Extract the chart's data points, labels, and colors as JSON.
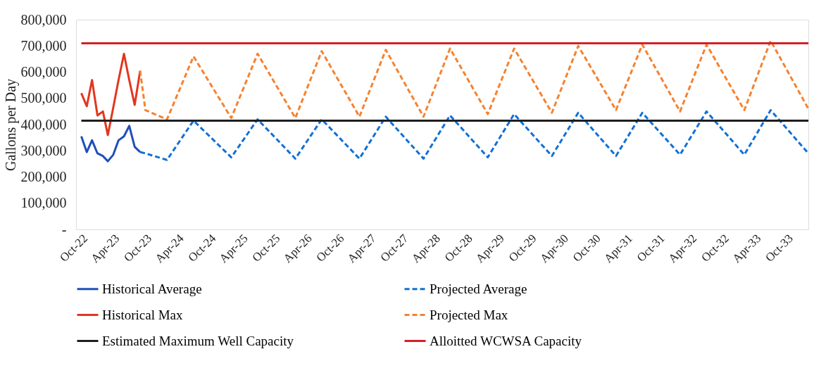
{
  "chart_data": {
    "type": "line",
    "ylabel": "Gallons per Day",
    "marker": "none",
    "grid": false,
    "legend": "bottom",
    "xlim": [
      "2022-09",
      "2034-02"
    ],
    "xticks": [
      {
        "value": "2022-10",
        "label": "Oct-22"
      },
      {
        "value": "2023-04",
        "label": "Apr-23"
      },
      {
        "value": "2023-10",
        "label": "Oct-23"
      },
      {
        "value": "2024-04",
        "label": "Apr-24"
      },
      {
        "value": "2024-10",
        "label": "Oct-24"
      },
      {
        "value": "2025-04",
        "label": "Apr-25"
      },
      {
        "value": "2025-10",
        "label": "Oct-25"
      },
      {
        "value": "2026-04",
        "label": "Apr-26"
      },
      {
        "value": "2026-10",
        "label": "Oct-26"
      },
      {
        "value": "2027-04",
        "label": "Apr-27"
      },
      {
        "value": "2027-10",
        "label": "Oct-27"
      },
      {
        "value": "2028-04",
        "label": "Apr-28"
      },
      {
        "value": "2028-10",
        "label": "Oct-28"
      },
      {
        "value": "2029-04",
        "label": "Apr-29"
      },
      {
        "value": "2029-10",
        "label": "Oct-29"
      },
      {
        "value": "2030-04",
        "label": "Apr-30"
      },
      {
        "value": "2030-10",
        "label": "Oct-30"
      },
      {
        "value": "2031-04",
        "label": "Apr-31"
      },
      {
        "value": "2031-10",
        "label": "Oct-31"
      },
      {
        "value": "2032-04",
        "label": "Apr-32"
      },
      {
        "value": "2032-10",
        "label": "Oct-32"
      },
      {
        "value": "2033-04",
        "label": "Apr-33"
      },
      {
        "value": "2033-10",
        "label": "Oct-33"
      }
    ],
    "ylim": [
      0,
      800000
    ],
    "yticks": [
      {
        "value": 0,
        "label": "-"
      },
      {
        "value": 100000,
        "label": "100,000"
      },
      {
        "value": 200000,
        "label": "200,000"
      },
      {
        "value": 300000,
        "label": "300,000"
      },
      {
        "value": 400000,
        "label": "400,000"
      },
      {
        "value": 500000,
        "label": "500,000"
      },
      {
        "value": 600000,
        "label": "600,000"
      },
      {
        "value": 700000,
        "label": "700,000"
      },
      {
        "value": 800000,
        "label": "800,000"
      }
    ],
    "series": [
      {
        "name": "Historical Average",
        "color": "#1f4fb8",
        "line_style": "solid",
        "x": [
          "2022-10",
          "2022-11",
          "2022-12",
          "2023-01",
          "2023-02",
          "2023-03",
          "2023-04",
          "2023-05",
          "2023-06",
          "2023-07",
          "2023-08",
          "2023-09"
        ],
        "values": [
          355000,
          295000,
          340000,
          290000,
          280000,
          260000,
          285000,
          340000,
          355000,
          395000,
          315000,
          295000
        ]
      },
      {
        "name": "Projected Average",
        "color": "#1170d6",
        "line_style": "dashed",
        "x": [
          "2023-09",
          "2023-10",
          "2024-02",
          "2024-07",
          "2025-02",
          "2025-07",
          "2026-02",
          "2026-07",
          "2027-02",
          "2027-07",
          "2028-02",
          "2028-07",
          "2029-02",
          "2029-07",
          "2030-02",
          "2030-07",
          "2031-02",
          "2031-07",
          "2032-02",
          "2032-07",
          "2033-02",
          "2033-07",
          "2034-02"
        ],
        "values": [
          295000,
          290000,
          265000,
          415000,
          275000,
          420000,
          270000,
          420000,
          270000,
          430000,
          270000,
          435000,
          275000,
          440000,
          280000,
          445000,
          280000,
          445000,
          285000,
          450000,
          285000,
          455000,
          290000
        ]
      },
      {
        "name": "Historical Max",
        "color": "#e2361f",
        "line_style": "solid",
        "x": [
          "2022-10",
          "2022-11",
          "2022-12",
          "2023-01",
          "2023-02",
          "2023-03",
          "2023-04",
          "2023-05",
          "2023-06",
          "2023-07",
          "2023-08",
          "2023-09"
        ],
        "values": [
          520000,
          470000,
          570000,
          435000,
          450000,
          360000,
          465000,
          570000,
          670000,
          570000,
          475000,
          605000
        ]
      },
      {
        "name": "Projected Max",
        "color": "#f5822f",
        "line_style": "dashed",
        "x": [
          "2023-09",
          "2023-10",
          "2024-02",
          "2024-07",
          "2025-02",
          "2025-07",
          "2026-02",
          "2026-07",
          "2027-02",
          "2027-07",
          "2028-02",
          "2028-07",
          "2029-02",
          "2029-07",
          "2030-02",
          "2030-07",
          "2031-02",
          "2031-07",
          "2032-02",
          "2032-07",
          "2033-02",
          "2033-07",
          "2034-02"
        ],
        "values": [
          605000,
          455000,
          420000,
          660000,
          425000,
          670000,
          425000,
          680000,
          430000,
          685000,
          430000,
          690000,
          440000,
          690000,
          445000,
          700000,
          455000,
          705000,
          450000,
          705000,
          455000,
          720000,
          460000
        ]
      },
      {
        "name": "Estimated Maximum Well Capacity",
        "color": "#1e1e1e",
        "line_style": "solid",
        "x": [
          "2022-10",
          "2034-02"
        ],
        "values": [
          415000,
          415000
        ]
      },
      {
        "name": "Alloitted WCWSA Capacity",
        "color": "#d42027",
        "line_style": "solid",
        "x": [
          "2022-10",
          "2034-02"
        ],
        "values": [
          710000,
          710000
        ]
      }
    ]
  }
}
